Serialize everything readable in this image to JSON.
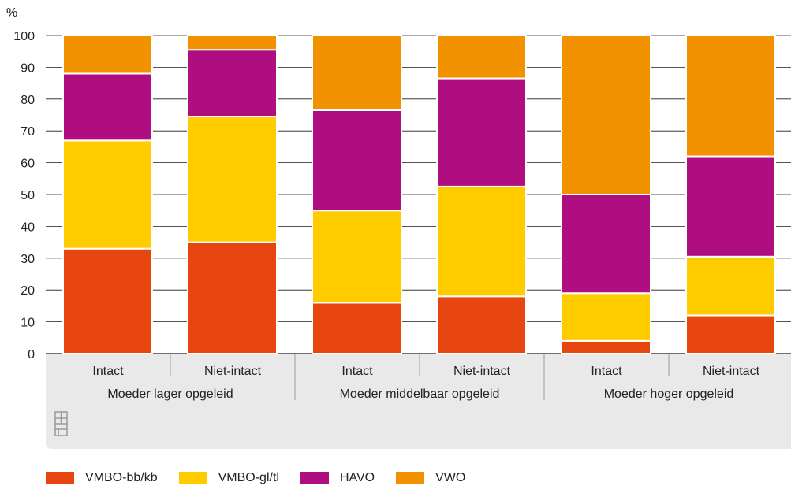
{
  "chart_data": {
    "type": "bar",
    "stacked": true,
    "ylabel": "%",
    "ylim": [
      0,
      100
    ],
    "yticks": [
      0,
      10,
      20,
      30,
      40,
      50,
      60,
      70,
      80,
      90,
      100
    ],
    "grid": true,
    "categories": [
      "Intact",
      "Niet-intact",
      "Intact",
      "Niet-intact",
      "Intact",
      "Niet-intact"
    ],
    "groups": [
      {
        "label": "Moeder lager opgeleid",
        "categories": [
          "Intact",
          "Niet-intact"
        ]
      },
      {
        "label": "Moeder middelbaar opgeleid",
        "categories": [
          "Intact",
          "Niet-intact"
        ]
      },
      {
        "label": "Moeder hoger opgeleid",
        "categories": [
          "Intact",
          "Niet-intact"
        ]
      }
    ],
    "series": [
      {
        "name": "VMBO-bb/kb",
        "color": "#e84610",
        "values": [
          33,
          35,
          16,
          18,
          4,
          12
        ]
      },
      {
        "name": "VMBO-gl/tl",
        "color": "#ffcc00",
        "values": [
          34,
          39.5,
          29,
          34.5,
          15,
          18.5
        ]
      },
      {
        "name": "HAVO",
        "color": "#af0e80",
        "values": [
          21,
          21,
          31.5,
          34,
          31,
          31.5
        ]
      },
      {
        "name": "VWO",
        "color": "#f39200",
        "values": [
          12,
          4.5,
          23.5,
          13.5,
          50,
          38
        ]
      }
    ],
    "legend_position": "bottom-left"
  },
  "logo": {
    "name": "cbs-logo-icon"
  }
}
